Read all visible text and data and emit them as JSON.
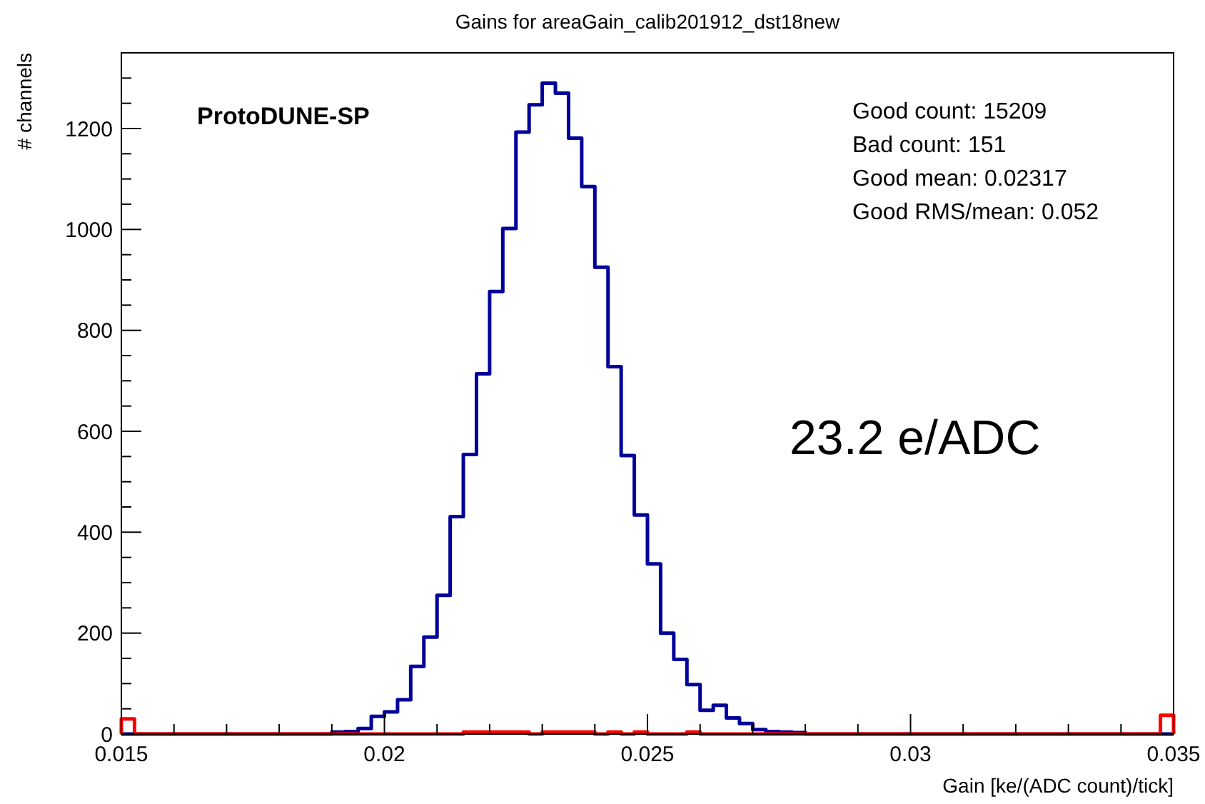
{
  "chart_data": {
    "type": "histogram",
    "title": "Gains for areaGain_calib201912_dst18new",
    "xlabel": "Gain [ke/(ADC count)/tick]",
    "ylabel": "# channels",
    "bins": [
      0.015,
      0.01525,
      0.0155,
      0.01575,
      0.016,
      0.01625,
      0.0165,
      0.01675,
      0.017,
      0.01725,
      0.0175,
      0.01775,
      0.018,
      0.01825,
      0.0185,
      0.01875,
      0.019,
      0.01925,
      0.0195,
      0.01975,
      0.02,
      0.02025,
      0.0205,
      0.02075,
      0.021,
      0.02125,
      0.0215,
      0.02175,
      0.022,
      0.02225,
      0.0225,
      0.02275,
      0.023,
      0.02325,
      0.0235,
      0.02375,
      0.024,
      0.02425,
      0.0245,
      0.02475,
      0.025,
      0.02525,
      0.0255,
      0.02575,
      0.026,
      0.02625,
      0.0265,
      0.02675,
      0.027,
      0.02725,
      0.0275,
      0.02775,
      0.028,
      0.02825,
      0.0285,
      0.02875,
      0.029,
      0.02925,
      0.0295,
      0.02975,
      0.03,
      0.03025,
      0.0305,
      0.03075,
      0.031,
      0.03125,
      0.0315,
      0.03175,
      0.032,
      0.03225,
      0.0325,
      0.03275,
      0.033,
      0.03325,
      0.0335,
      0.03375,
      0.034,
      0.03425,
      0.0345,
      0.03475,
      0.035
    ],
    "series": [
      {
        "color": "#000099",
        "values": [
          0,
          0,
          0,
          0,
          0,
          0,
          0,
          0,
          0,
          0,
          0,
          0,
          0,
          0,
          0,
          0,
          4,
          5,
          11,
          35,
          44,
          68,
          134,
          192,
          275,
          431,
          554,
          714,
          877,
          1002,
          1193,
          1247,
          1290,
          1270,
          1181,
          1085,
          925,
          728,
          552,
          434,
          337,
          200,
          148,
          98,
          47,
          57,
          32,
          21,
          9,
          5,
          4,
          3,
          0,
          0,
          0,
          0,
          0,
          0,
          0,
          0,
          0,
          0,
          0,
          0,
          0,
          0,
          0,
          0,
          0,
          0,
          0,
          0,
          0,
          0,
          0,
          0,
          0,
          0,
          0,
          0
        ]
      },
      {
        "color": "#ff0000",
        "values": [
          30,
          0,
          0,
          0,
          0,
          0,
          0,
          0,
          0,
          0,
          0,
          0,
          0,
          0,
          0,
          0,
          0,
          0,
          0,
          0,
          0,
          0,
          0,
          0,
          0,
          0,
          4,
          4,
          4,
          4,
          4,
          0,
          4,
          4,
          4,
          4,
          0,
          4,
          0,
          4,
          0,
          0,
          0,
          4,
          0,
          0,
          0,
          0,
          0,
          0,
          0,
          0,
          0,
          0,
          0,
          0,
          0,
          0,
          0,
          0,
          0,
          0,
          0,
          0,
          0,
          0,
          0,
          0,
          0,
          0,
          0,
          0,
          0,
          0,
          0,
          0,
          0,
          0,
          0,
          37
        ]
      }
    ],
    "xlim": [
      0.015,
      0.035
    ],
    "xticks": [
      0.015,
      {
        "value": 0.016,
        "label": null
      },
      {
        "value": 0.017,
        "label": null
      },
      {
        "value": 0.018,
        "label": null
      },
      {
        "value": 0.019,
        "label": null
      },
      0.02,
      {
        "value": 0.021,
        "label": null
      },
      {
        "value": 0.022,
        "label": null
      },
      {
        "value": 0.023,
        "label": null
      },
      {
        "value": 0.024,
        "label": null
      },
      0.025,
      {
        "value": 0.026,
        "label": null
      },
      {
        "value": 0.027,
        "label": null
      },
      {
        "value": 0.028,
        "label": null
      },
      {
        "value": 0.029,
        "label": null
      },
      0.03,
      {
        "value": 0.031,
        "label": null
      },
      {
        "value": 0.032,
        "label": null
      },
      {
        "value": 0.033,
        "label": null
      },
      {
        "value": 0.034,
        "label": null
      },
      0.035
    ],
    "ylim": [
      0,
      1350
    ],
    "yticks": [
      0,
      {
        "value": 50,
        "label": null
      },
      {
        "value": 100,
        "label": null
      },
      {
        "value": 150,
        "label": null
      },
      200,
      {
        "value": 250,
        "label": null
      },
      {
        "value": 300,
        "label": null
      },
      {
        "value": 350,
        "label": null
      },
      400,
      {
        "value": 450,
        "label": null
      },
      {
        "value": 500,
        "label": null
      },
      {
        "value": 550,
        "label": null
      },
      600,
      {
        "value": 650,
        "label": null
      },
      {
        "value": 700,
        "label": null
      },
      {
        "value": 750,
        "label": null
      },
      800,
      {
        "value": 850,
        "label": null
      },
      {
        "value": 900,
        "label": null
      },
      {
        "value": 950,
        "label": null
      },
      1000,
      {
        "value": 1050,
        "label": null
      },
      {
        "value": 1100,
        "label": null
      },
      {
        "value": 1150,
        "label": null
      },
      1200,
      {
        "value": 1250,
        "label": null
      },
      {
        "value": 1300,
        "label": null
      }
    ],
    "grid": false,
    "annotations": [
      "ProtoDUNE-SP",
      "Good count: 15209",
      "Bad count: 151",
      "Good mean: 0.02317",
      "Good RMS/mean: 0.052",
      "23.2 e/ADC"
    ]
  }
}
